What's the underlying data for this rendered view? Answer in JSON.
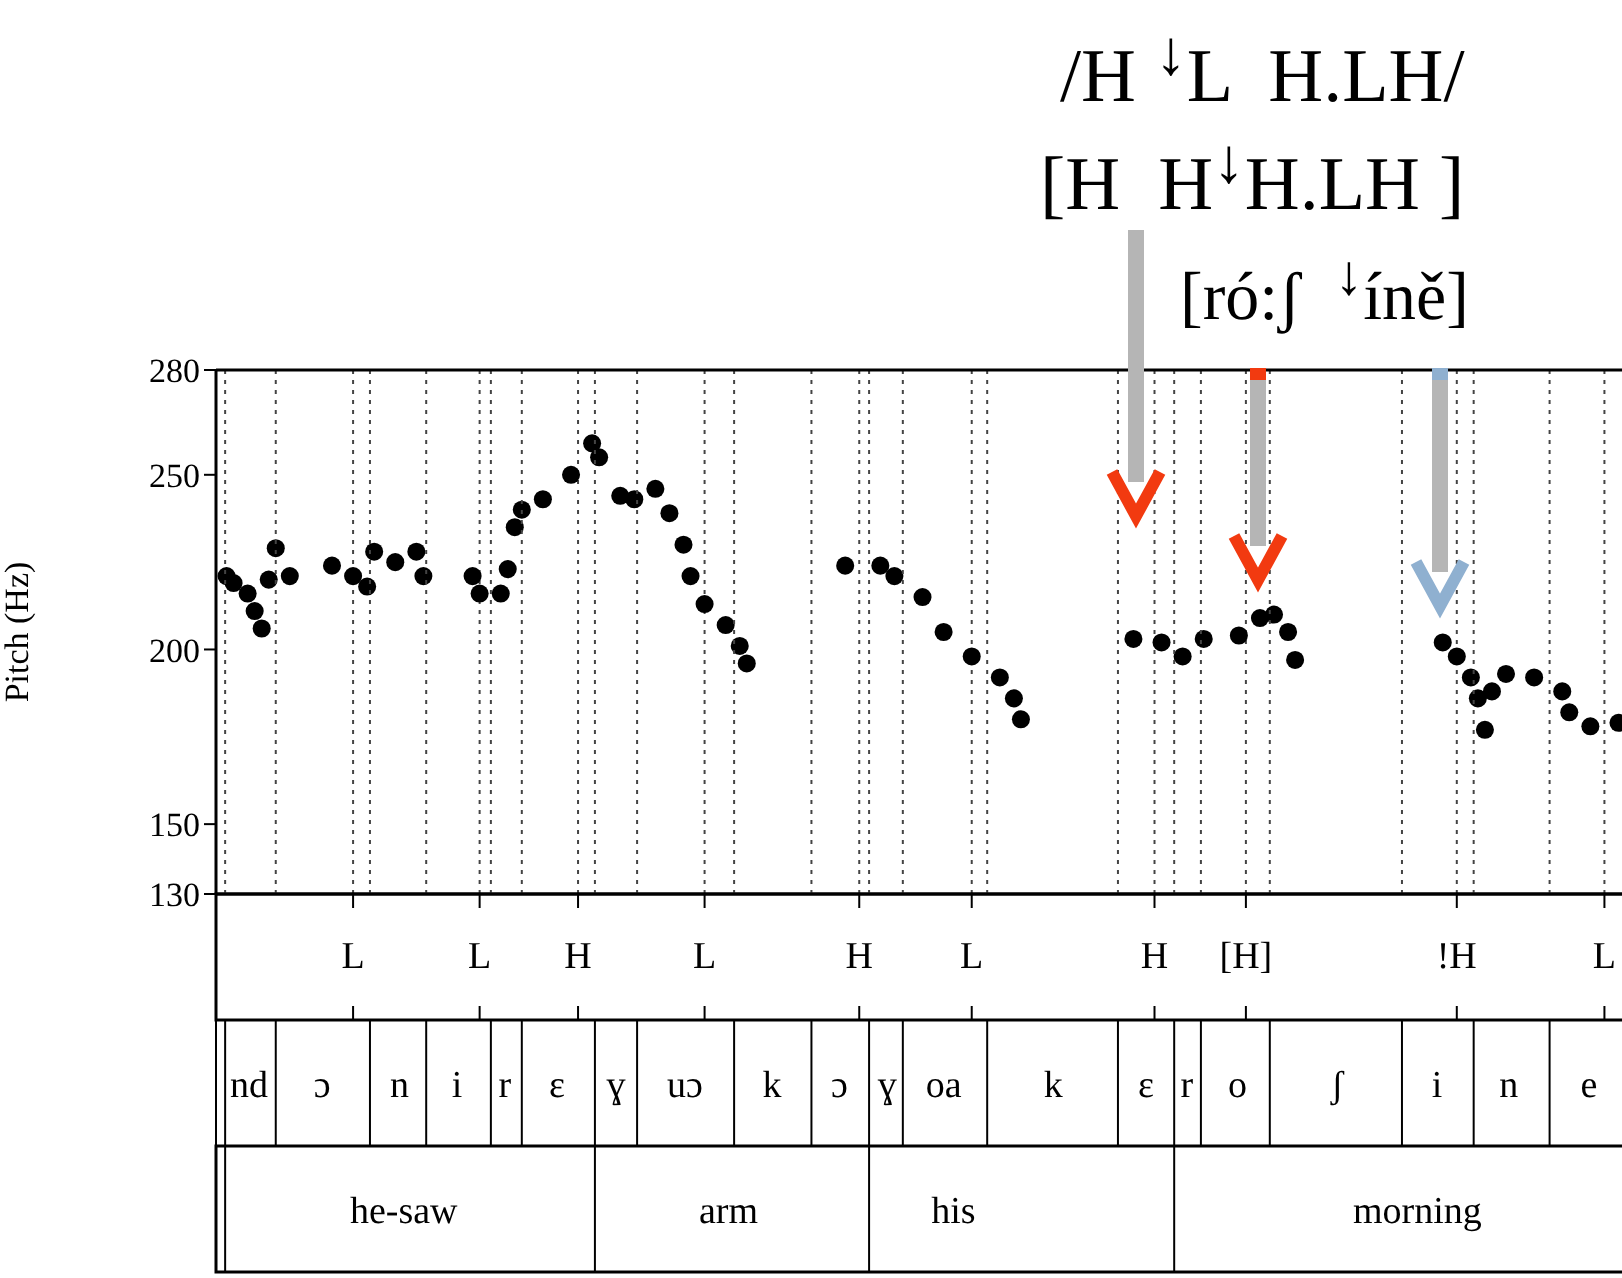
{
  "chart_data": {
    "type": "scatter",
    "ylabel": "Pitch (Hz)",
    "marker": "circle",
    "grid": "x",
    "ylim": [
      130,
      280
    ],
    "yticks": [
      130,
      150,
      200,
      250,
      280
    ],
    "categories": [
      null,
      null,
      null,
      null,
      null,
      null,
      null,
      null,
      null,
      null,
      null,
      null,
      null,
      null,
      null,
      null,
      null,
      null,
      null,
      "L",
      null,
      null,
      null,
      null,
      null,
      null,
      null,
      null,
      null,
      null,
      null,
      null,
      null,
      null,
      null,
      null,
      null,
      "L",
      null,
      null,
      null,
      null,
      null,
      null,
      null,
      null,
      null,
      null,
      null,
      null,
      null,
      "H",
      null,
      null,
      null,
      null,
      null,
      null,
      null,
      null,
      null,
      null,
      null,
      null,
      null,
      null,
      null,
      null,
      null,
      "L",
      null,
      null,
      null,
      null,
      null,
      null,
      null,
      null,
      null,
      null,
      null,
      null,
      null,
      null,
      null,
      null,
      null,
      null,
      null,
      null,
      null,
      "H",
      null,
      null,
      null,
      null,
      null,
      null,
      null,
      null,
      null,
      null,
      null,
      null,
      null,
      null,
      null,
      "L",
      null,
      null,
      null,
      null,
      null,
      null,
      null,
      null,
      null,
      null,
      null,
      null,
      null,
      null,
      null,
      null,
      null,
      null,
      null,
      null,
      null,
      null,
      null,
      null,
      null,
      "H",
      null,
      null,
      null,
      null,
      null,
      null,
      null,
      null,
      null,
      null,
      null,
      null,
      "[H]",
      null,
      null,
      null,
      null,
      null,
      null,
      null,
      null,
      null,
      null,
      null,
      null,
      null,
      null,
      null,
      null,
      null,
      null,
      null,
      null,
      null,
      null,
      null,
      null,
      null,
      null,
      null,
      null,
      null,
      "!H",
      null,
      null,
      null,
      null,
      null,
      null,
      null,
      null,
      null,
      null,
      null,
      null,
      null,
      null,
      null,
      null,
      null,
      null,
      null,
      null,
      "L",
      null,
      null
    ],
    "series": [
      {
        "color": "#000000",
        "values": [
          null,
          221,
          219,
          null,
          216,
          211,
          206,
          220,
          229,
          null,
          221,
          null,
          null,
          null,
          null,
          null,
          224,
          null,
          null,
          221,
          null,
          218,
          228,
          null,
          null,
          225,
          null,
          null,
          228,
          221,
          null,
          null,
          null,
          null,
          null,
          null,
          221,
          216,
          null,
          null,
          216,
          223,
          235,
          240,
          null,
          null,
          243,
          null,
          null,
          null,
          250,
          null,
          null,
          259,
          255,
          null,
          null,
          244,
          null,
          243,
          null,
          null,
          246,
          null,
          239,
          null,
          230,
          221,
          null,
          213,
          null,
          null,
          207,
          null,
          201,
          196,
          null,
          null,
          null,
          null,
          null,
          null,
          null,
          null,
          null,
          null,
          null,
          null,
          null,
          224,
          null,
          null,
          null,
          null,
          224,
          null,
          221,
          null,
          null,
          null,
          215,
          null,
          null,
          205,
          null,
          null,
          null,
          198,
          null,
          null,
          null,
          192,
          null,
          186,
          180,
          null,
          null,
          null,
          null,
          null,
          null,
          null,
          null,
          null,
          null,
          null,
          null,
          null,
          null,
          null,
          203,
          null,
          null,
          null,
          202,
          null,
          null,
          198,
          null,
          null,
          203,
          null,
          null,
          null,
          null,
          204,
          null,
          null,
          209,
          null,
          210,
          null,
          205,
          197,
          null,
          null,
          null,
          null,
          null,
          null,
          null,
          null,
          null,
          null,
          null,
          null,
          null,
          null,
          null,
          null,
          null,
          null,
          null,
          null,
          202,
          null,
          198,
          null,
          192,
          186,
          177,
          188,
          null,
          193,
          null,
          null,
          null,
          192,
          null,
          null,
          null,
          188,
          182,
          null,
          null,
          178,
          null,
          null,
          null,
          179
        ]
      }
    ],
    "annotations": [
      "/H $^{↓}$L  H.LH/",
      "[H  H$^{↓}$H.LH ]",
      "[ró:ʃ  $^{↓}$íně]",
      "nd",
      "ɔ",
      "n",
      "i",
      "r",
      "ɛ",
      "ɣ",
      "uɔ",
      "k",
      "ɔ",
      "ɣ",
      "oa",
      "k",
      "ɛ",
      "r",
      "o",
      "ʃ",
      "i",
      "n",
      "e",
      "he-saw",
      "arm",
      "his",
      "morning"
    ]
  }
}
